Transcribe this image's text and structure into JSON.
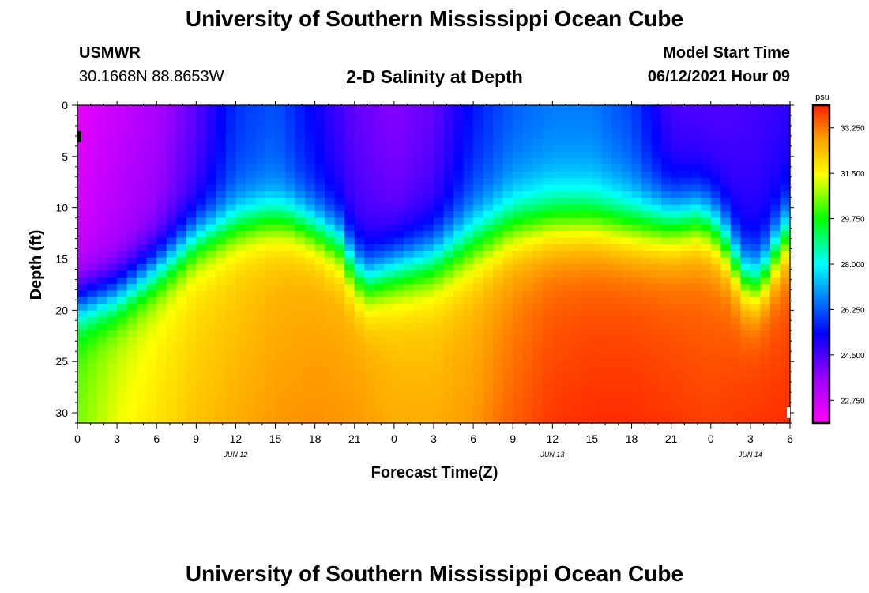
{
  "page": {
    "title_top": "University of Southern Mississippi Ocean Cube",
    "title_bottom": "University of Southern Mississippi Ocean Cube",
    "station_name": "USMWR",
    "station_coords": "30.1668N  88.8653W",
    "plot_title": "2-D Salinity at Depth",
    "model_label": "Model Start Time",
    "model_time": "06/12/2021 Hour 09"
  },
  "chart_data": {
    "type": "heatmap",
    "title": "2-D Salinity at Depth",
    "xlabel": "Forecast Time(Z)",
    "ylabel": "Depth (ft)",
    "xlim": [
      0,
      54
    ],
    "ylim": [
      0,
      31
    ],
    "x_ticks": [
      {
        "hours": 0,
        "label": "0"
      },
      {
        "hours": 3,
        "label": "3"
      },
      {
        "hours": 6,
        "label": "6"
      },
      {
        "hours": 9,
        "label": "9"
      },
      {
        "hours": 12,
        "label": "12"
      },
      {
        "hours": 15,
        "label": "15"
      },
      {
        "hours": 18,
        "label": "18"
      },
      {
        "hours": 21,
        "label": "21"
      },
      {
        "hours": 24,
        "label": "0"
      },
      {
        "hours": 27,
        "label": "3"
      },
      {
        "hours": 30,
        "label": "6"
      },
      {
        "hours": 33,
        "label": "9"
      },
      {
        "hours": 36,
        "label": "12"
      },
      {
        "hours": 39,
        "label": "15"
      },
      {
        "hours": 42,
        "label": "18"
      },
      {
        "hours": 45,
        "label": "21"
      },
      {
        "hours": 48,
        "label": "0"
      },
      {
        "hours": 51,
        "label": "3"
      },
      {
        "hours": 54,
        "label": "6"
      }
    ],
    "date_labels": [
      {
        "hours": 12,
        "label": "JUN 12"
      },
      {
        "hours": 36,
        "label": "JUN 13"
      },
      {
        "hours": 51,
        "label": "JUN 14"
      }
    ],
    "y_ticks": [
      0,
      5,
      10,
      15,
      20,
      25,
      30
    ],
    "colorbar": {
      "unit": "psu",
      "min": 21.875,
      "max": 34.125,
      "tick_values": [
        22.75,
        24.5,
        26.25,
        28.0,
        29.75,
        31.5,
        33.25
      ],
      "tick_labels": [
        "22.750",
        "24.500",
        "26.250",
        "28.000",
        "29.750",
        "31.500",
        "33.250"
      ]
    },
    "series": [
      {
        "name": "interface_depth_ft",
        "x": [
          0,
          3,
          6,
          9,
          12,
          14,
          16,
          18,
          20,
          21,
          22,
          23,
          24,
          27,
          30,
          33,
          36,
          39,
          42,
          45,
          47,
          48,
          49,
          50,
          51,
          52,
          53,
          54
        ],
        "values": [
          19.5,
          18.5,
          16,
          13,
          11.5,
          11,
          11,
          12,
          13.5,
          16,
          17,
          16.5,
          16,
          15,
          13,
          11.5,
          11,
          11,
          11.5,
          11.5,
          11,
          11.5,
          13,
          15.5,
          17.5,
          16.5,
          14,
          12
        ]
      },
      {
        "name": "interface_width_ft",
        "x": [
          0,
          18,
          24,
          30,
          36,
          42,
          48,
          50,
          52,
          54
        ],
        "values": [
          7,
          7,
          8,
          9,
          9,
          9,
          8.5,
          8,
          8,
          8
        ]
      },
      {
        "name": "surface_salinity_psu",
        "x": [
          0,
          3,
          6,
          9,
          12,
          15,
          18,
          21,
          24,
          27,
          30,
          33,
          36,
          39,
          42,
          45,
          48,
          51,
          54
        ],
        "values": [
          22.3,
          22.8,
          23.3,
          24.3,
          25.8,
          26.2,
          25.2,
          24.2,
          23.8,
          24.2,
          25.5,
          26.3,
          26.6,
          26.6,
          26.0,
          24.5,
          24.4,
          24.5,
          24.8
        ]
      },
      {
        "name": "bottom_salinity_psu",
        "x": [
          0,
          3,
          6,
          9,
          12,
          15,
          18,
          21,
          24,
          27,
          30,
          33,
          36,
          39,
          42,
          45,
          48,
          51,
          54
        ],
        "values": [
          30.5,
          31.3,
          31.8,
          32.3,
          32.6,
          32.9,
          33.0,
          32.9,
          32.6,
          32.6,
          32.9,
          33.5,
          33.9,
          34.0,
          34.0,
          33.9,
          33.8,
          33.9,
          34.0
        ]
      }
    ]
  }
}
